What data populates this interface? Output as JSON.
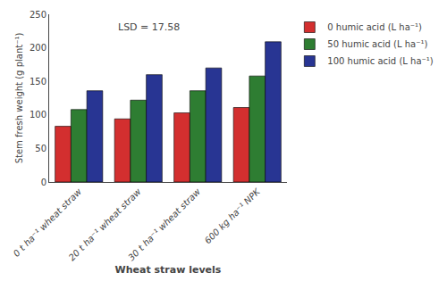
{
  "chart_data": {
    "type": "bar",
    "xlabel": "Wheat straw levels",
    "ylabel": "Stem fresh weight (g plant⁻¹)",
    "categories": [
      "0 t ha⁻¹ wheat straw",
      "20 t ha⁻¹ wheat straw",
      "30 t ha⁻¹ wheat straw",
      "600 kg ha⁻¹ NPK"
    ],
    "series": [
      {
        "name": "0 humic acid (L ha⁻¹)",
        "color": "#d32f2f",
        "values": [
          83,
          94,
          103,
          111
        ]
      },
      {
        "name": "50 humic acid (L ha⁻¹)",
        "color": "#2e7d32",
        "values": [
          108,
          122,
          136,
          158
        ]
      },
      {
        "name": "100 humic acid (L ha⁻¹)",
        "color": "#283593",
        "values": [
          136,
          160,
          170,
          209
        ]
      }
    ],
    "annotations": [
      "LSD = 17.58"
    ],
    "ylim": [
      0,
      250
    ],
    "yticks": [
      0,
      50,
      100,
      150,
      200,
      250
    ],
    "grid": false,
    "legend": "right"
  }
}
